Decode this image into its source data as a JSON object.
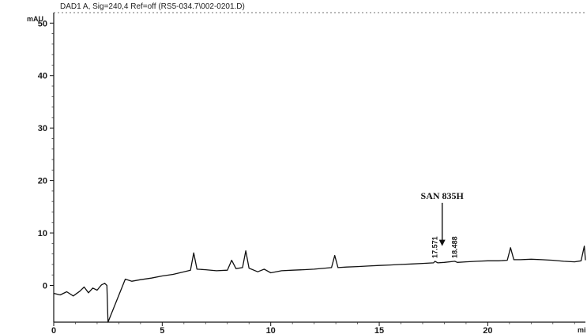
{
  "chart_data": {
    "type": "line",
    "header": "DAD1 A, Sig=240,4 Ref=off (RS5-034.7\\002-0201.D)",
    "ylabel": "mAU",
    "xlabel": "mi",
    "xlim": [
      0,
      24.5
    ],
    "ylim": [
      -7,
      52
    ],
    "x_ticks": [
      0,
      5,
      10,
      15,
      20
    ],
    "y_ticks": [
      0,
      10,
      20,
      30,
      40,
      50
    ],
    "grid": false,
    "series": [
      {
        "values": [
          [
            0,
            -1.5
          ],
          [
            0.3,
            -1.8
          ],
          [
            0.6,
            -1.2
          ],
          [
            0.9,
            -2.0
          ],
          [
            1.2,
            -1.1
          ],
          [
            1.4,
            -0.3
          ],
          [
            1.6,
            -1.4
          ],
          [
            1.8,
            -0.5
          ],
          [
            2.0,
            -0.9
          ],
          [
            2.2,
            0.1
          ],
          [
            2.35,
            0.4
          ],
          [
            2.45,
            0.0
          ],
          [
            2.5,
            -7.0
          ],
          [
            3.3,
            1.2
          ],
          [
            3.6,
            0.8
          ],
          [
            4.0,
            1.1
          ],
          [
            4.5,
            1.4
          ],
          [
            5.0,
            1.8
          ],
          [
            5.5,
            2.1
          ],
          [
            6.0,
            2.6
          ],
          [
            6.3,
            2.9
          ],
          [
            6.45,
            6.2
          ],
          [
            6.6,
            3.1
          ],
          [
            7.0,
            3.0
          ],
          [
            7.5,
            2.8
          ],
          [
            8.0,
            2.9
          ],
          [
            8.2,
            4.8
          ],
          [
            8.4,
            3.2
          ],
          [
            8.7,
            3.4
          ],
          [
            8.85,
            6.6
          ],
          [
            9.0,
            3.3
          ],
          [
            9.4,
            2.6
          ],
          [
            9.7,
            3.1
          ],
          [
            10.0,
            2.4
          ],
          [
            10.5,
            2.8
          ],
          [
            11.0,
            2.9
          ],
          [
            11.5,
            3.0
          ],
          [
            12.0,
            3.1
          ],
          [
            12.5,
            3.3
          ],
          [
            12.8,
            3.4
          ],
          [
            12.95,
            5.7
          ],
          [
            13.1,
            3.4
          ],
          [
            13.5,
            3.5
          ],
          [
            14.0,
            3.6
          ],
          [
            14.5,
            3.7
          ],
          [
            15.0,
            3.8
          ],
          [
            15.5,
            3.9
          ],
          [
            16.0,
            4.0
          ],
          [
            16.5,
            4.1
          ],
          [
            17.0,
            4.2
          ],
          [
            17.5,
            4.3
          ],
          [
            17.57,
            4.6
          ],
          [
            17.7,
            4.3
          ],
          [
            18.0,
            4.4
          ],
          [
            18.48,
            4.6
          ],
          [
            18.6,
            4.4
          ],
          [
            19.0,
            4.5
          ],
          [
            19.5,
            4.6
          ],
          [
            20.0,
            4.7
          ],
          [
            20.5,
            4.7
          ],
          [
            20.9,
            4.8
          ],
          [
            21.05,
            7.2
          ],
          [
            21.2,
            4.9
          ],
          [
            21.5,
            4.9
          ],
          [
            22.0,
            5.0
          ],
          [
            22.5,
            4.9
          ],
          [
            23.0,
            4.8
          ],
          [
            23.5,
            4.6
          ],
          [
            24.0,
            4.5
          ],
          [
            24.3,
            4.7
          ],
          [
            24.45,
            7.5
          ],
          [
            24.5,
            4.8
          ]
        ]
      }
    ],
    "peak_labels": [
      {
        "label": "17.571",
        "x": 17.57,
        "y": 4.6
      },
      {
        "label": "18.488",
        "x": 18.48,
        "y": 4.6
      }
    ],
    "annotation": {
      "text": "SAN 835H",
      "x": 17.9,
      "y": 16.5,
      "arrow_to_y": 7.5
    }
  }
}
